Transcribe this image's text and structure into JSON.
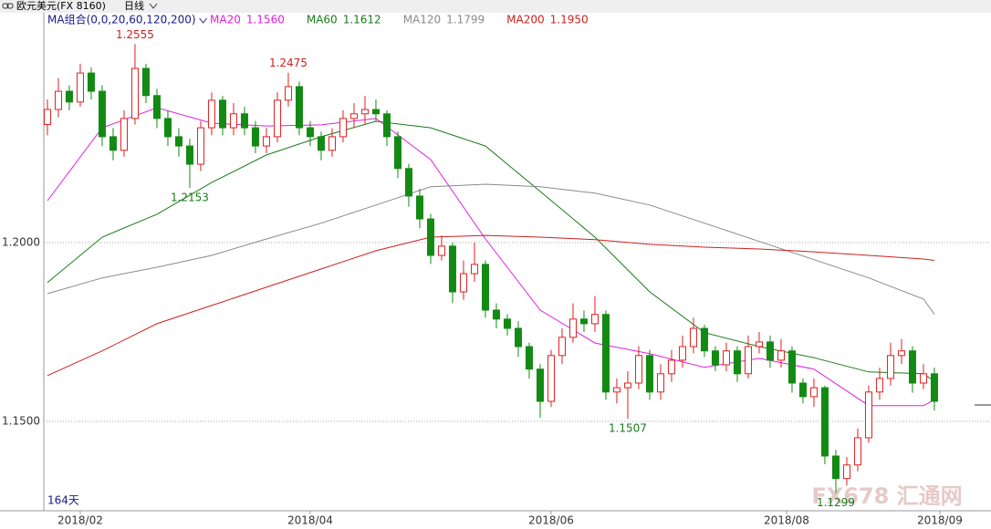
{
  "header": {
    "title": "欧元美元(FX 8160)",
    "period": "日线"
  },
  "chart_data": {
    "type": "candlestick",
    "ma_group_label": "MA组合(0,0,20,60,120,200)",
    "note": "164天",
    "watermark": "FX678 汇通网",
    "up_color": "#e02020",
    "down_color": "#138a13",
    "grid": true,
    "xlim": [
      -0.33,
      84.67
    ],
    "ylim": [
      1.1255,
      1.264
    ],
    "yticks": [
      {
        "value": 1.2,
        "label": "1.2000"
      },
      {
        "value": 1.15,
        "label": "1.1500"
      }
    ],
    "xticks": [
      {
        "value": 3,
        "label": "2018/02"
      },
      {
        "value": 24,
        "label": "2018/04"
      },
      {
        "value": 46,
        "label": "2018/06"
      },
      {
        "value": 67.5,
        "label": "2018/08"
      },
      {
        "value": 81.5,
        "label": "2018/09"
      }
    ],
    "open": [
      1.233,
      1.2372,
      1.2423,
      1.2393,
      1.2474,
      1.2423,
      1.2296,
      1.2258,
      1.2347,
      1.2487,
      1.2411,
      1.2347,
      1.2296,
      1.227,
      1.2219,
      1.2321,
      1.2398,
      1.2321,
      1.236,
      1.2321,
      1.227,
      1.2296,
      1.2398,
      1.2436,
      1.2321,
      1.2296,
      1.2258,
      1.2296,
      1.2347,
      1.236,
      1.2372,
      1.236,
      1.2296,
      1.2207,
      1.213,
      1.2066,
      1.1964,
      1.199,
      1.1862,
      1.1913,
      1.1939,
      1.1811,
      1.1786,
      1.176,
      1.1709,
      1.1646,
      1.1556,
      1.1684,
      1.1735,
      1.1786,
      1.1773,
      1.1799,
      1.1582,
      1.1594,
      1.1607,
      1.1684,
      1.1582,
      1.1633,
      1.1671,
      1.1709,
      1.176,
      1.1697,
      1.1658,
      1.1697,
      1.1633,
      1.1709,
      1.1722,
      1.1671,
      1.1697,
      1.1607,
      1.1569,
      1.1594,
      1.1403,
      1.134,
      1.1378,
      1.1454,
      1.1582,
      1.162,
      1.1684,
      1.1697,
      1.1607,
      1.1633
    ],
    "high": [
      1.24,
      1.246,
      1.244,
      1.25,
      1.249,
      1.244,
      1.232,
      1.237,
      1.2555,
      1.25,
      1.243,
      1.237,
      1.232,
      1.229,
      1.234,
      1.242,
      1.241,
      1.239,
      1.238,
      1.234,
      1.232,
      1.242,
      1.2475,
      1.245,
      1.234,
      1.231,
      1.232,
      1.237,
      1.239,
      1.241,
      1.24,
      1.237,
      1.231,
      1.222,
      1.215,
      1.208,
      1.202,
      1.2,
      1.195,
      1.2,
      1.195,
      1.183,
      1.18,
      1.178,
      1.172,
      1.166,
      1.17,
      1.176,
      1.183,
      1.181,
      1.185,
      1.181,
      1.162,
      1.164,
      1.171,
      1.17,
      1.166,
      1.17,
      1.174,
      1.179,
      1.177,
      1.171,
      1.172,
      1.171,
      1.174,
      1.175,
      1.174,
      1.173,
      1.171,
      1.162,
      1.162,
      1.16,
      1.142,
      1.14,
      1.148,
      1.16,
      1.165,
      1.172,
      1.173,
      1.171,
      1.166,
      1.165
    ],
    "low": [
      1.23,
      1.235,
      1.237,
      1.238,
      1.24,
      1.227,
      1.223,
      1.224,
      1.233,
      1.239,
      1.232,
      1.227,
      1.224,
      1.2153,
      1.22,
      1.23,
      1.23,
      1.23,
      1.23,
      1.225,
      1.225,
      1.228,
      1.238,
      1.23,
      1.227,
      1.223,
      1.224,
      1.228,
      1.232,
      1.233,
      1.234,
      1.227,
      1.218,
      1.21,
      1.204,
      1.194,
      1.195,
      1.183,
      1.184,
      1.189,
      1.179,
      1.176,
      1.174,
      1.168,
      1.162,
      1.151,
      1.154,
      1.166,
      1.172,
      1.175,
      1.175,
      1.156,
      1.155,
      1.1507,
      1.159,
      1.156,
      1.156,
      1.161,
      1.165,
      1.169,
      1.168,
      1.164,
      1.164,
      1.161,
      1.162,
      1.169,
      1.165,
      1.165,
      1.158,
      1.155,
      1.154,
      1.138,
      1.1299,
      1.132,
      1.136,
      1.144,
      1.156,
      1.16,
      1.166,
      1.158,
      1.159,
      1.153
    ],
    "close": [
      1.2372,
      1.2423,
      1.2393,
      1.2474,
      1.2423,
      1.2296,
      1.2258,
      1.2347,
      1.2487,
      1.2411,
      1.2347,
      1.2296,
      1.227,
      1.2219,
      1.2321,
      1.2398,
      1.2321,
      1.236,
      1.2321,
      1.227,
      1.2296,
      1.2398,
      1.2436,
      1.2321,
      1.2296,
      1.2258,
      1.2296,
      1.2347,
      1.236,
      1.2372,
      1.236,
      1.2296,
      1.2207,
      1.213,
      1.2066,
      1.1964,
      1.199,
      1.1862,
      1.1913,
      1.1939,
      1.1811,
      1.1786,
      1.176,
      1.1709,
      1.1646,
      1.1556,
      1.1684,
      1.1735,
      1.1786,
      1.1773,
      1.1799,
      1.1582,
      1.1594,
      1.1607,
      1.1684,
      1.1582,
      1.1633,
      1.1671,
      1.1709,
      1.176,
      1.1697,
      1.1658,
      1.1697,
      1.1633,
      1.1709,
      1.1722,
      1.1671,
      1.1697,
      1.1607,
      1.1569,
      1.1594,
      1.1403,
      1.134,
      1.1378,
      1.1454,
      1.1582,
      1.162,
      1.1684,
      1.1697,
      1.1607,
      1.1633,
      1.1556
    ],
    "ma_x": [
      0,
      5,
      10,
      15,
      20,
      25,
      30,
      35,
      40,
      45,
      50,
      55,
      60,
      65,
      70,
      75,
      80,
      81
    ],
    "moving_averages": [
      {
        "name": "MA20",
        "color": "#e020e0",
        "current": {
          "value": 1.156,
          "label": "1.1560"
        },
        "values": [
          1.2117,
          1.2321,
          1.2377,
          1.2334,
          1.2326,
          1.2329,
          1.2347,
          1.2232,
          1.201,
          1.1811,
          1.1719,
          1.1689,
          1.1651,
          1.1676,
          1.1646,
          1.1544,
          1.1544,
          1.156
        ]
      },
      {
        "name": "MA60",
        "color": "#1a7a1a",
        "current": {
          "value": 1.1612,
          "label": "1.1612"
        },
        "values": [
          1.1888,
          1.2015,
          1.2079,
          1.2168,
          1.2245,
          1.2296,
          1.2339,
          1.2321,
          1.227,
          1.2143,
          1.2015,
          1.1862,
          1.1748,
          1.1709,
          1.1678,
          1.1638,
          1.1633,
          1.1612
        ]
      },
      {
        "name": "MA120",
        "color": "#8a8a8a",
        "current": {
          "value": 1.1799,
          "label": "1.1799"
        },
        "values": [
          1.1857,
          1.1901,
          1.1931,
          1.1964,
          1.201,
          1.2054,
          1.2105,
          1.2156,
          1.2163,
          1.2156,
          1.2138,
          1.2105,
          1.2054,
          1.2003,
          1.1952,
          1.1901,
          1.1842,
          1.1799
        ]
      },
      {
        "name": "MA200",
        "color": "#cc2020",
        "current": {
          "value": 1.195,
          "label": "1.1950"
        },
        "values": [
          1.1628,
          1.1697,
          1.1773,
          1.1824,
          1.1875,
          1.1926,
          1.1977,
          1.2015,
          1.202,
          1.2015,
          1.2008,
          1.1995,
          1.1987,
          1.1982,
          1.1974,
          1.1964,
          1.1954,
          1.195
        ]
      }
    ],
    "annotations": [
      {
        "label": "1.2555",
        "x": 8,
        "y": 1.2555,
        "position": "above",
        "color": "#cc2020"
      },
      {
        "label": "1.2475",
        "x": 22,
        "y": 1.2475,
        "position": "above",
        "color": "#cc2020"
      },
      {
        "label": "1.2153",
        "x": 13,
        "y": 1.2153,
        "position": "below",
        "color": "#1a7a1a"
      },
      {
        "label": "1.1507",
        "x": 53,
        "y": 1.1507,
        "position": "below",
        "color": "#1a7a1a"
      },
      {
        "label": "1.1299",
        "x": 72,
        "y": 1.1299,
        "position": "below",
        "color": "#1a7a1a"
      }
    ]
  }
}
